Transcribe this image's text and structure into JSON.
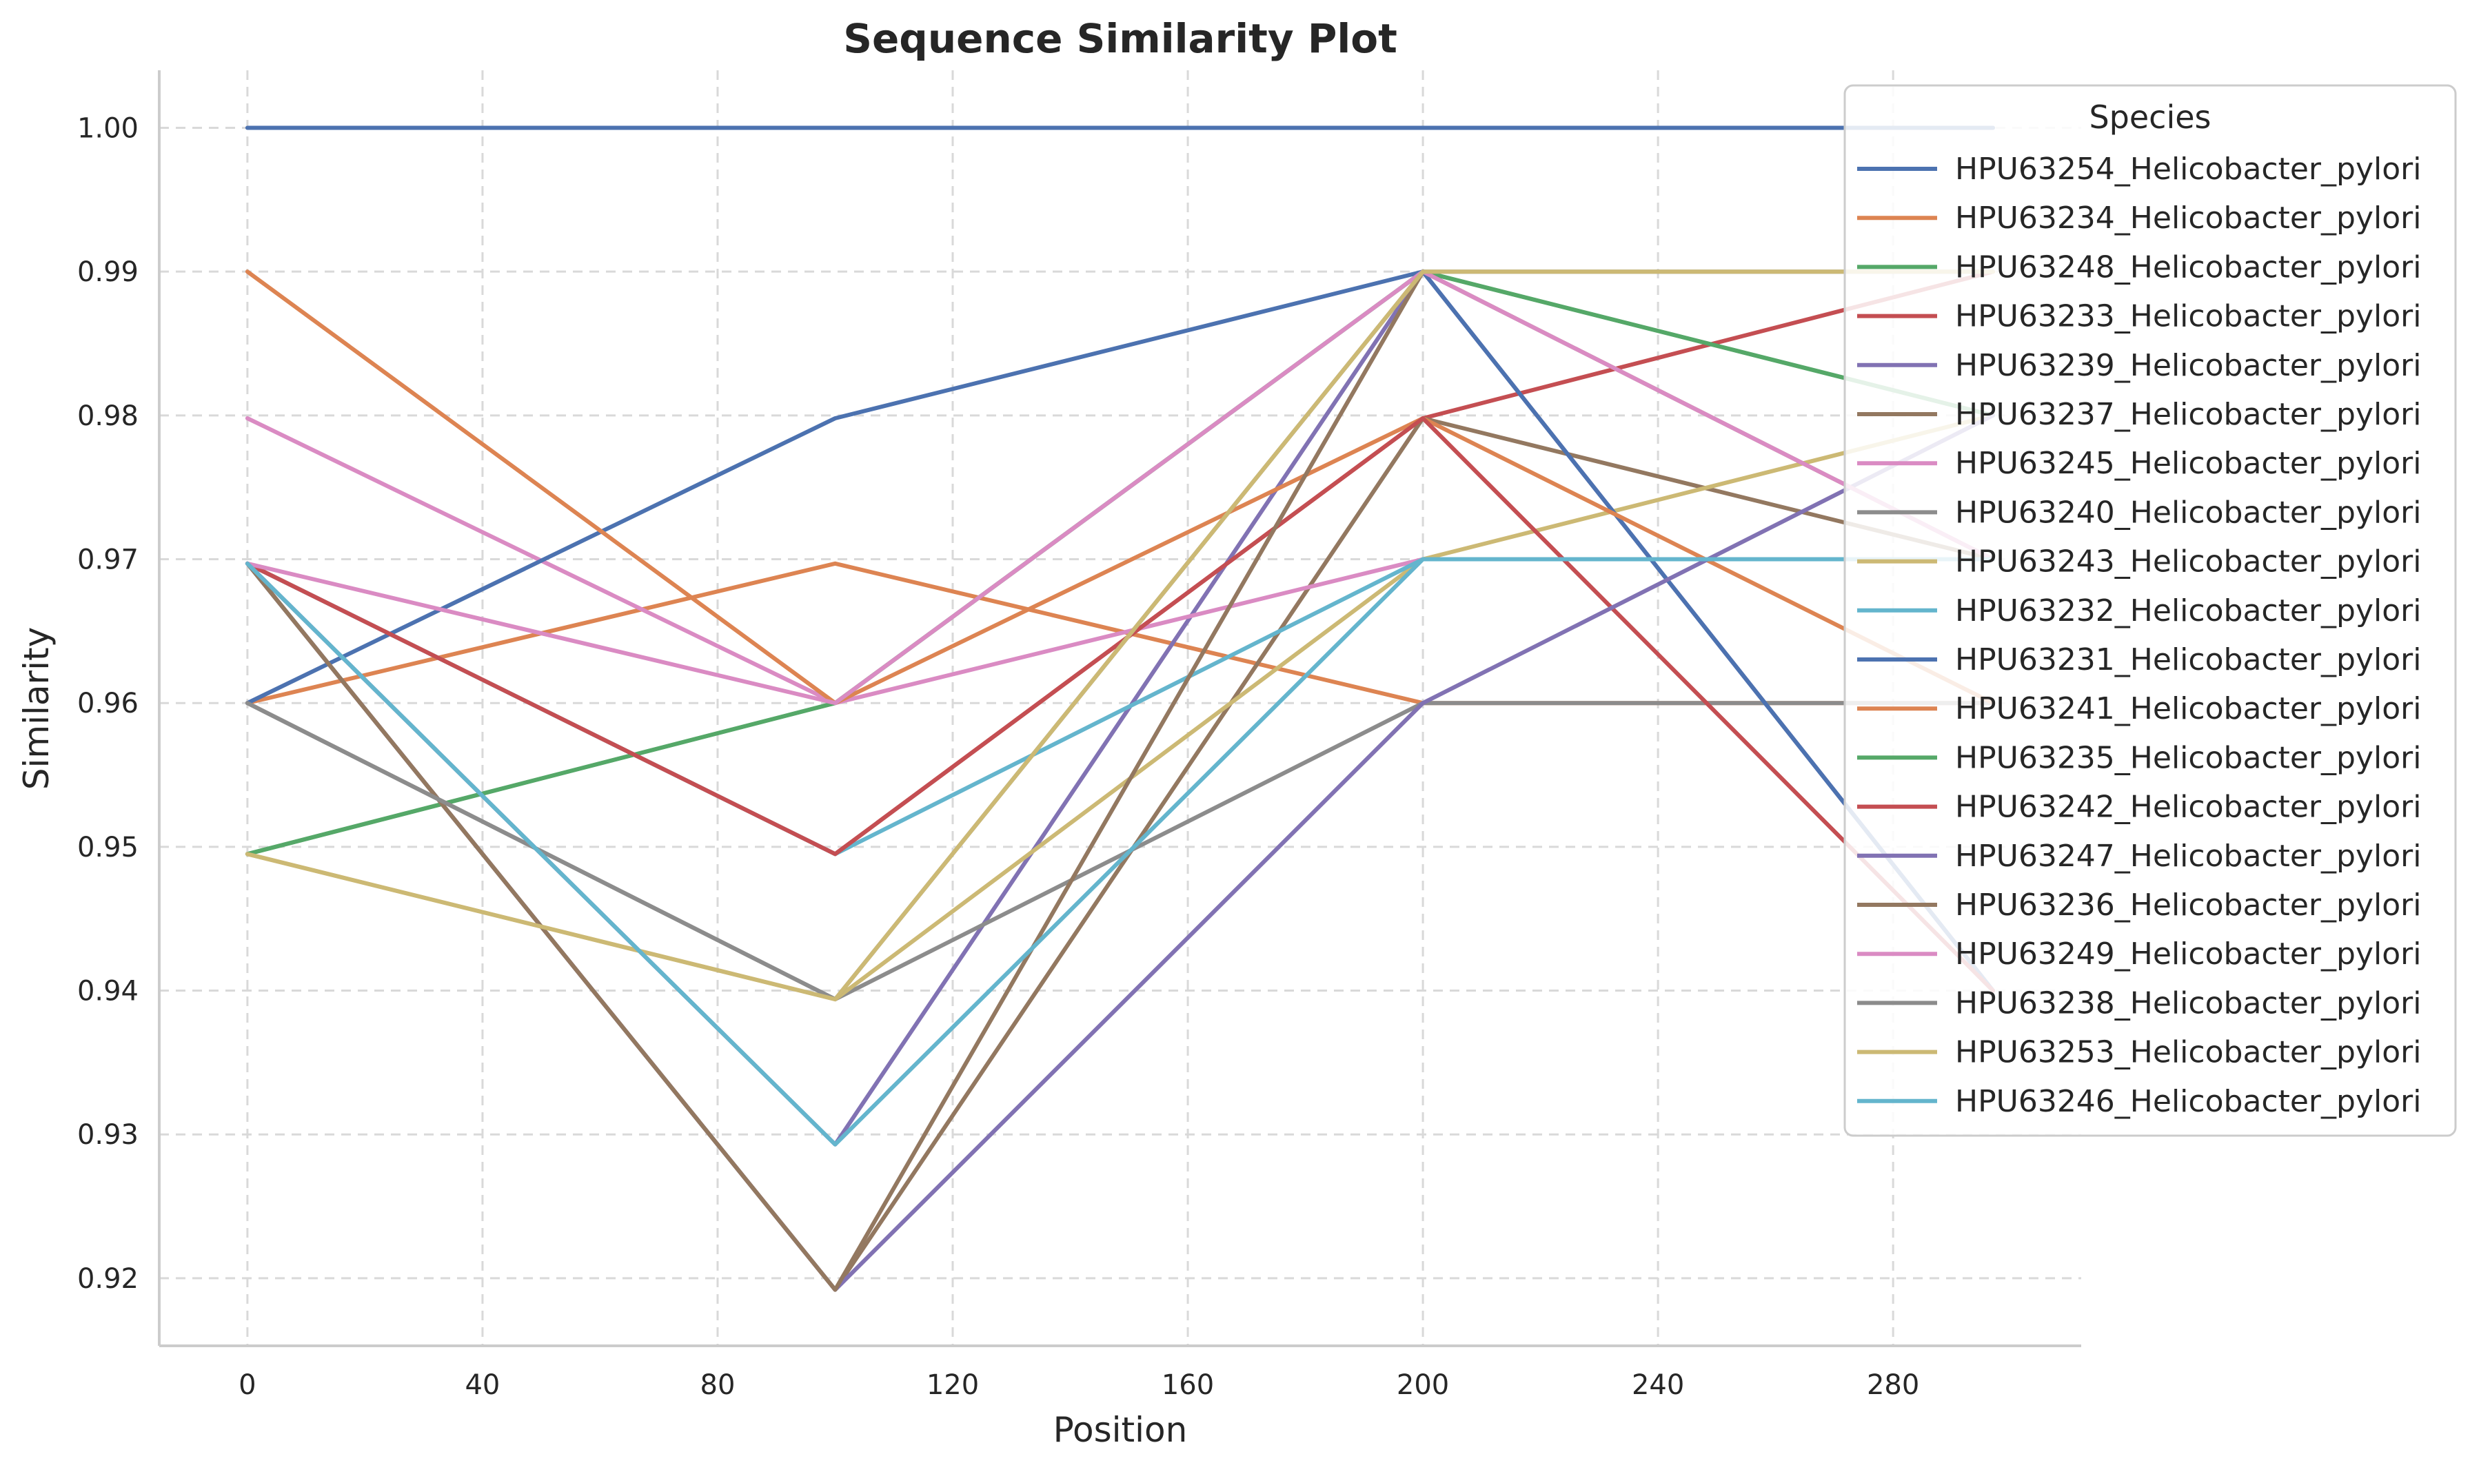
{
  "chart_data": {
    "type": "line",
    "title": "Sequence Similarity Plot",
    "xlabel": "Position",
    "ylabel": "Similarity",
    "xlim": [
      -15,
      312
    ],
    "ylim": [
      0.9153,
      1.004
    ],
    "xticks": [
      0,
      40,
      80,
      120,
      160,
      200,
      240,
      280
    ],
    "xtick_labels": [
      "0",
      "40",
      "80",
      "120",
      "160",
      "200",
      "240",
      "280"
    ],
    "yticks": [
      0.92,
      0.93,
      0.94,
      0.95,
      0.96,
      0.97,
      0.98,
      0.99,
      1.0
    ],
    "ytick_labels": [
      "0.92",
      "0.93",
      "0.94",
      "0.95",
      "0.96",
      "0.97",
      "0.98",
      "0.99",
      "1.00"
    ],
    "grid": true,
    "legend": {
      "title": "Species",
      "placement": "top-right"
    },
    "x": [
      0,
      100,
      200,
      297
    ],
    "series": [
      {
        "name": "HPU63254_Helicobacter_pylori",
        "color": "#4c72b0",
        "values": [
          1.0,
          1.0,
          1.0,
          1.0
        ]
      },
      {
        "name": "HPU63234_Helicobacter_pylori",
        "color": "#dd8452",
        "values": [
          0.96,
          0.9697,
          0.96,
          0.96
        ]
      },
      {
        "name": "HPU63248_Helicobacter_pylori",
        "color": "#55a868",
        "values": [
          0.9495,
          0.96,
          0.99,
          0.98
        ]
      },
      {
        "name": "HPU63233_Helicobacter_pylori",
        "color": "#c44e52",
        "values": [
          0.9697,
          0.9495,
          0.9798,
          0.99
        ]
      },
      {
        "name": "HPU63239_Helicobacter_pylori",
        "color": "#8172b3",
        "values": [
          0.9697,
          0.9293,
          0.99,
          0.94
        ]
      },
      {
        "name": "HPU63237_Helicobacter_pylori",
        "color": "#937860",
        "values": [
          0.9697,
          0.9192,
          0.9798,
          0.97
        ]
      },
      {
        "name": "HPU63245_Helicobacter_pylori",
        "color": "#da8bc3",
        "values": [
          0.9798,
          0.96,
          0.97,
          0.97
        ]
      },
      {
        "name": "HPU63240_Helicobacter_pylori",
        "color": "#8c8c8c",
        "values": [
          0.96,
          0.9394,
          0.96,
          0.96
        ]
      },
      {
        "name": "HPU63243_Helicobacter_pylori",
        "color": "#ccb974",
        "values": [
          0.9495,
          0.9394,
          0.97,
          0.98
        ]
      },
      {
        "name": "HPU63232_Helicobacter_pylori",
        "color": "#64b5cd",
        "values": [
          0.9697,
          0.9495,
          0.97,
          0.97
        ]
      },
      {
        "name": "HPU63231_Helicobacter_pylori",
        "color": "#4c72b0",
        "values": [
          0.96,
          0.9798,
          0.99,
          0.94
        ]
      },
      {
        "name": "HPU63241_Helicobacter_pylori",
        "color": "#dd8452",
        "values": [
          0.99,
          0.96,
          0.9798,
          0.96
        ]
      },
      {
        "name": "HPU63235_Helicobacter_pylori",
        "color": "#55a868",
        "values": [
          0.9495,
          0.96,
          0.99,
          0.98
        ]
      },
      {
        "name": "HPU63242_Helicobacter_pylori",
        "color": "#c44e52",
        "values": [
          0.9697,
          0.9495,
          0.9798,
          0.94
        ]
      },
      {
        "name": "HPU63247_Helicobacter_pylori",
        "color": "#8172b3",
        "values": [
          0.9697,
          0.9192,
          0.96,
          0.98
        ]
      },
      {
        "name": "HPU63236_Helicobacter_pylori",
        "color": "#937860",
        "values": [
          0.9697,
          0.9192,
          0.99,
          0.97
        ]
      },
      {
        "name": "HPU63249_Helicobacter_pylori",
        "color": "#da8bc3",
        "values": [
          0.9697,
          0.96,
          0.99,
          0.97
        ]
      },
      {
        "name": "HPU63238_Helicobacter_pylori",
        "color": "#8c8c8c",
        "values": [
          0.96,
          0.9394,
          0.99,
          0.99
        ]
      },
      {
        "name": "HPU63253_Helicobacter_pylori",
        "color": "#ccb974",
        "values": [
          0.9495,
          0.9394,
          0.99,
          0.99
        ]
      },
      {
        "name": "HPU63246_Helicobacter_pylori",
        "color": "#64b5cd",
        "values": [
          0.9697,
          0.9293,
          0.97,
          0.97
        ]
      }
    ]
  }
}
